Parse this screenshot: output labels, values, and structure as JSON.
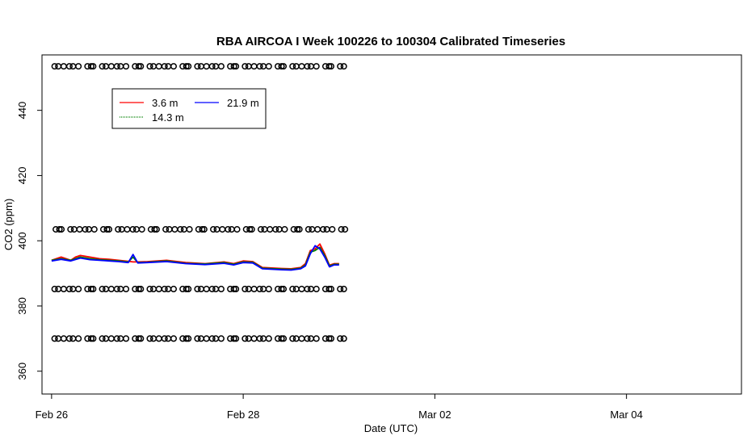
{
  "chart_data": {
    "type": "line",
    "title": "RBA AIRCOA I  Week 100226 to 100304  Calibrated Timeseries",
    "xlabel": "Date (UTC)",
    "ylabel": "CO2 (ppm)",
    "xlim": [
      -0.1,
      7.2
    ],
    "ylim": [
      353,
      457
    ],
    "x_ticks": [
      {
        "value": 0,
        "label": "Feb 26"
      },
      {
        "value": 2,
        "label": "Feb 28"
      },
      {
        "value": 4,
        "label": "Mar 02"
      },
      {
        "value": 6,
        "label": "Mar 04"
      }
    ],
    "y_ticks": [
      360,
      380,
      400,
      420,
      440
    ],
    "grid": false,
    "legend": {
      "placement": "top-left",
      "entries": [
        {
          "label": "3.6 m",
          "color": "#ff0000"
        },
        {
          "label": "14.3 m",
          "color": "#008000"
        },
        {
          "label": "21.9 m",
          "color": "#0000ff"
        }
      ]
    },
    "series": [
      {
        "name": "3.6 m",
        "color": "#ff0000",
        "x": [
          0,
          0.1,
          0.2,
          0.25,
          0.3,
          0.4,
          0.5,
          0.6,
          0.7,
          0.8,
          0.85,
          0.9,
          1.0,
          1.2,
          1.4,
          1.6,
          1.8,
          1.9,
          2.0,
          2.1,
          2.2,
          2.4,
          2.5,
          2.6,
          2.65,
          2.7,
          2.75,
          2.8,
          2.85,
          2.9,
          2.95,
          3.0
        ],
        "y": [
          394,
          395,
          394,
          395,
          395.5,
          395,
          394.5,
          394.3,
          394,
          393.7,
          393.5,
          393.5,
          393.6,
          394,
          393.3,
          393,
          393.5,
          393,
          393.8,
          393.6,
          391.8,
          391.5,
          391.4,
          391.8,
          393,
          397,
          397.5,
          399,
          396,
          392.5,
          393,
          393
        ]
      },
      {
        "name": "14.3 m",
        "color": "#008000",
        "x": [
          0,
          0.1,
          0.2,
          0.3,
          0.4,
          0.5,
          0.6,
          0.7,
          0.8,
          0.85,
          0.9,
          1.0,
          1.2,
          1.4,
          1.6,
          1.8,
          1.9,
          2.0,
          2.1,
          2.2,
          2.4,
          2.5,
          2.6,
          2.65,
          2.7,
          2.75,
          2.8,
          2.85,
          2.9,
          2.95,
          3.0
        ],
        "y": [
          394,
          394.5,
          394,
          395,
          394.5,
          394.2,
          394,
          393.8,
          393.5,
          395,
          393.3,
          393.4,
          393.8,
          393.1,
          392.9,
          393.3,
          392.8,
          393.5,
          393.4,
          391.6,
          391.3,
          391.2,
          391.6,
          392.6,
          396.5,
          397,
          398,
          395.5,
          392.3,
          392.8,
          392.8
        ]
      },
      {
        "name": "21.9 m",
        "color": "#0000ff",
        "x": [
          0,
          0.1,
          0.2,
          0.3,
          0.4,
          0.5,
          0.6,
          0.7,
          0.8,
          0.85,
          0.9,
          1.0,
          1.2,
          1.4,
          1.6,
          1.8,
          1.9,
          2.0,
          2.1,
          2.2,
          2.4,
          2.5,
          2.6,
          2.65,
          2.7,
          2.75,
          2.8,
          2.85,
          2.9,
          2.95,
          3.0
        ],
        "y": [
          393.8,
          394.3,
          393.8,
          394.7,
          394.2,
          394,
          393.8,
          393.6,
          393.3,
          395.8,
          393.2,
          393.3,
          393.6,
          393,
          392.7,
          393.1,
          392.6,
          393.3,
          393.2,
          391.4,
          391.1,
          391,
          391.4,
          392.3,
          396,
          398.5,
          397.5,
          395,
          392,
          392.6,
          392.6
        ]
      }
    ],
    "calibration_markers": {
      "marker": "o",
      "levels": [
        453.5,
        403.5,
        385.2,
        370
      ],
      "x_start": 0.02,
      "x_end": 3.0,
      "count": 37
    }
  }
}
